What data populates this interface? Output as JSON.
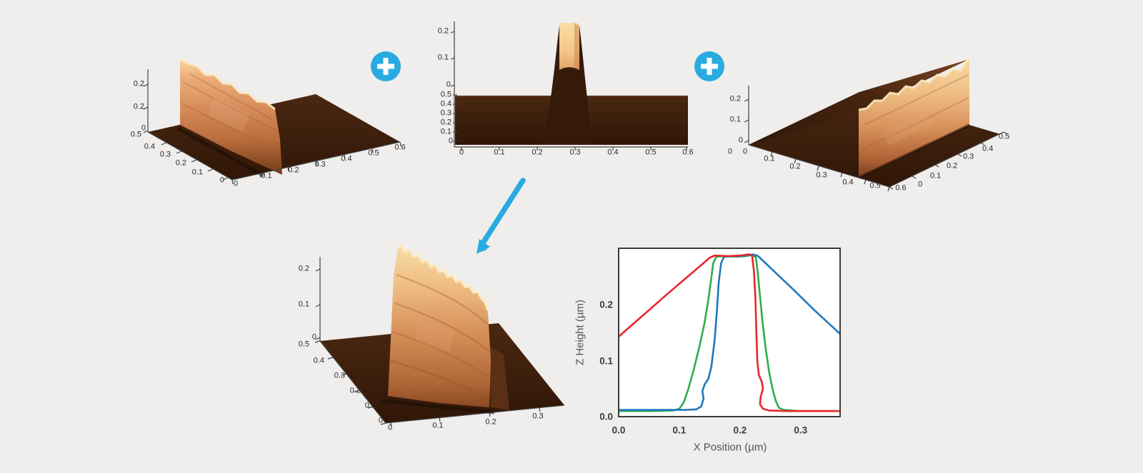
{
  "page": {
    "background_color": "#efeeec"
  },
  "operators": {
    "plus_symbol": "+",
    "plus_color": "#29abe2",
    "arrow_color": "#29abe2"
  },
  "surface_palette": {
    "base_dark": "#3a1d0c",
    "face_light": "#f8d9a1",
    "face_mid": "#d28257",
    "face_deep": "#713a18"
  },
  "surface_plots": {
    "top_left": {
      "z_ticks": [
        "0.2",
        "0.2",
        "0"
      ],
      "depth_ticks": [
        "0.5",
        "0.4",
        "0.3",
        "0.2",
        "0.1",
        "0"
      ],
      "x_ticks": [
        "0",
        "0.1",
        "0.2",
        "0.3",
        "0.4",
        "0.5",
        "0.6"
      ]
    },
    "top_center": {
      "z_ticks": [
        "0.2",
        "0.1",
        "0"
      ],
      "depth_ticks": [
        "0.5",
        "0.4",
        "0.3",
        "0.2",
        "0.1",
        "0"
      ],
      "x_ticks": [
        "0",
        "0.1",
        "0.2",
        "0.3",
        "0.4",
        "0.5",
        "0.6"
      ]
    },
    "top_right": {
      "z_ticks": [
        "0.2",
        "0.1",
        "0"
      ],
      "origin_ticks": [
        "0",
        "0"
      ],
      "x_ticks": [
        "0.1",
        "0.2",
        "0.3",
        "0.4",
        "0.5",
        "0.6"
      ],
      "depth_ticks": [
        "0",
        "0.1",
        "0.2",
        "0.3",
        "0.4",
        "0.5"
      ]
    },
    "bottom_center": {
      "z_ticks": [
        "0.2",
        "0.1",
        "0"
      ],
      "depth_ticks": [
        "0.5",
        "0.4",
        "0.3",
        "0.2",
        "0.1",
        "0"
      ],
      "x_ticks": [
        "0",
        "0.1",
        "0.2",
        "0.3"
      ]
    }
  },
  "chart_data": {
    "type": "line",
    "title": "",
    "xlabel": "X Position (µm)",
    "ylabel": "Z Height (µm)",
    "xlim": [
      0,
      0.365
    ],
    "ylim": [
      0,
      0.301
    ],
    "x_ticks": [
      0.0,
      0.1,
      0.2,
      0.3
    ],
    "x_tick_labels": [
      "0.0",
      "0.1",
      "0.2",
      "0.3"
    ],
    "y_ticks": [
      0.0,
      0.1,
      0.2
    ],
    "y_tick_labels": [
      "0.0",
      "0.1",
      "0.2"
    ],
    "grid": false,
    "legend": false,
    "plot_background": "#ffffff",
    "border_color": "#3d3b39",
    "series": [
      {
        "name": "combined-profile-green",
        "color": "#2eae4b",
        "points": [
          [
            0,
            0.01
          ],
          [
            0.05,
            0.01
          ],
          [
            0.09,
            0.011
          ],
          [
            0.1,
            0.014
          ],
          [
            0.107,
            0.025
          ],
          [
            0.115,
            0.05
          ],
          [
            0.124,
            0.085
          ],
          [
            0.133,
            0.125
          ],
          [
            0.141,
            0.165
          ],
          [
            0.148,
            0.21
          ],
          [
            0.153,
            0.25
          ],
          [
            0.156,
            0.275
          ],
          [
            0.161,
            0.286
          ],
          [
            0.175,
            0.287
          ],
          [
            0.195,
            0.286
          ],
          [
            0.21,
            0.287
          ],
          [
            0.22,
            0.289
          ],
          [
            0.226,
            0.285
          ],
          [
            0.229,
            0.26
          ],
          [
            0.233,
            0.215
          ],
          [
            0.237,
            0.17
          ],
          [
            0.242,
            0.125
          ],
          [
            0.248,
            0.08
          ],
          [
            0.254,
            0.048
          ],
          [
            0.259,
            0.028
          ],
          [
            0.264,
            0.016
          ],
          [
            0.272,
            0.012
          ],
          [
            0.3,
            0.01
          ],
          [
            0.365,
            0.01
          ]
        ]
      },
      {
        "name": "right-tilt-profile-blue",
        "color": "#1f78be",
        "points": [
          [
            0,
            0.012
          ],
          [
            0.06,
            0.012
          ],
          [
            0.11,
            0.012
          ],
          [
            0.128,
            0.013
          ],
          [
            0.136,
            0.018
          ],
          [
            0.14,
            0.032
          ],
          [
            0.138,
            0.046
          ],
          [
            0.142,
            0.058
          ],
          [
            0.148,
            0.068
          ],
          [
            0.153,
            0.09
          ],
          [
            0.158,
            0.135
          ],
          [
            0.162,
            0.19
          ],
          [
            0.165,
            0.24
          ],
          [
            0.169,
            0.275
          ],
          [
            0.174,
            0.286
          ],
          [
            0.19,
            0.287
          ],
          [
            0.21,
            0.288
          ],
          [
            0.222,
            0.29
          ],
          [
            0.23,
            0.287
          ],
          [
            0.26,
            0.256
          ],
          [
            0.29,
            0.225
          ],
          [
            0.32,
            0.193
          ],
          [
            0.345,
            0.168
          ],
          [
            0.365,
            0.148
          ]
        ]
      },
      {
        "name": "left-tilt-profile-red",
        "color": "#e8262b",
        "points": [
          [
            0,
            0.143
          ],
          [
            0.04,
            0.181
          ],
          [
            0.08,
            0.219
          ],
          [
            0.12,
            0.256
          ],
          [
            0.15,
            0.284
          ],
          [
            0.158,
            0.288
          ],
          [
            0.18,
            0.287
          ],
          [
            0.2,
            0.288
          ],
          [
            0.215,
            0.29
          ],
          [
            0.22,
            0.288
          ],
          [
            0.223,
            0.26
          ],
          [
            0.2255,
            0.21
          ],
          [
            0.227,
            0.15
          ],
          [
            0.2285,
            0.1
          ],
          [
            0.231,
            0.075
          ],
          [
            0.236,
            0.062
          ],
          [
            0.238,
            0.05
          ],
          [
            0.234,
            0.035
          ],
          [
            0.233,
            0.022
          ],
          [
            0.238,
            0.014
          ],
          [
            0.248,
            0.011
          ],
          [
            0.28,
            0.01
          ],
          [
            0.32,
            0.01
          ],
          [
            0.365,
            0.01
          ]
        ]
      }
    ]
  }
}
